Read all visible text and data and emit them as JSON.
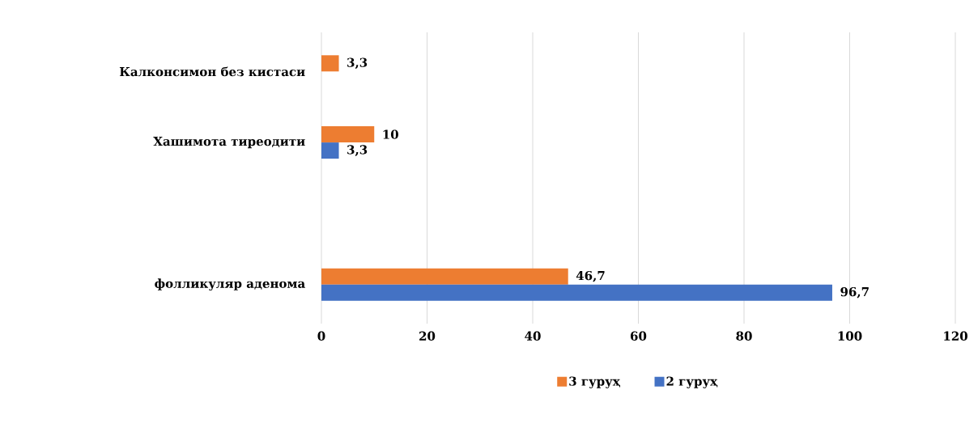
{
  "chart_data": {
    "type": "bar",
    "orientation": "horizontal",
    "categories": [
      "Калконсимон без кистаси",
      "Хашимота тиреодити",
      null,
      "фолликуляр аденома"
    ],
    "series": [
      {
        "name": "3 гуруҳ",
        "color": "#ed7d31",
        "values": [
          3.3,
          10,
          null,
          46.7
        ],
        "value_labels": [
          "3,3",
          "10",
          null,
          "46,7"
        ]
      },
      {
        "name": "2 гуруҳ",
        "color": "#4472c4",
        "values": [
          null,
          3.3,
          null,
          96.7
        ],
        "value_labels": [
          null,
          "3,3",
          null,
          "96,7"
        ]
      }
    ],
    "xlim": [
      0,
      120
    ],
    "xticks": [
      0,
      20,
      40,
      60,
      80,
      100,
      120
    ],
    "grid": "x",
    "legend": "bottom"
  }
}
